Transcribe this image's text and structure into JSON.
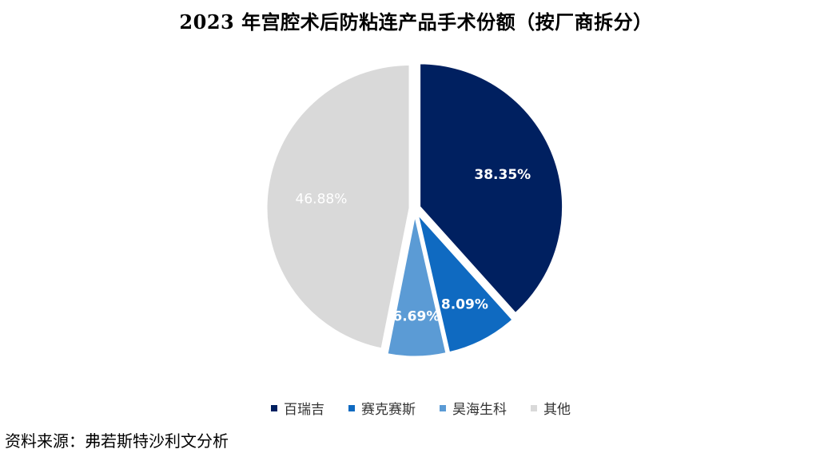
{
  "title": "2023 年宫腔术后防粘连产品手术份额（按厂商拆分）",
  "source": "资料来源：弗若斯特沙利文分析",
  "chart_data": {
    "type": "pie",
    "title": "2023 年宫腔术后防粘连产品手术份额（按厂商拆分）",
    "unit": "%",
    "legend_position": "bottom",
    "slices": [
      {
        "name": "百瑞吉",
        "value": 38.35,
        "label": "38.35%",
        "color": "#002060",
        "label_color": "#ffffff"
      },
      {
        "name": "赛克赛斯",
        "value": 8.09,
        "label": "8.09%",
        "color": "#0f6ac1",
        "label_color": "#ffffff"
      },
      {
        "name": "昊海生科",
        "value": 6.69,
        "label": "6.69%",
        "color": "#5b9bd5",
        "label_color": "#ffffff"
      },
      {
        "name": "其他",
        "value": 46.88,
        "label": "46.88%",
        "color": "#d9d9d9",
        "label_color": "#ffffff"
      }
    ]
  }
}
